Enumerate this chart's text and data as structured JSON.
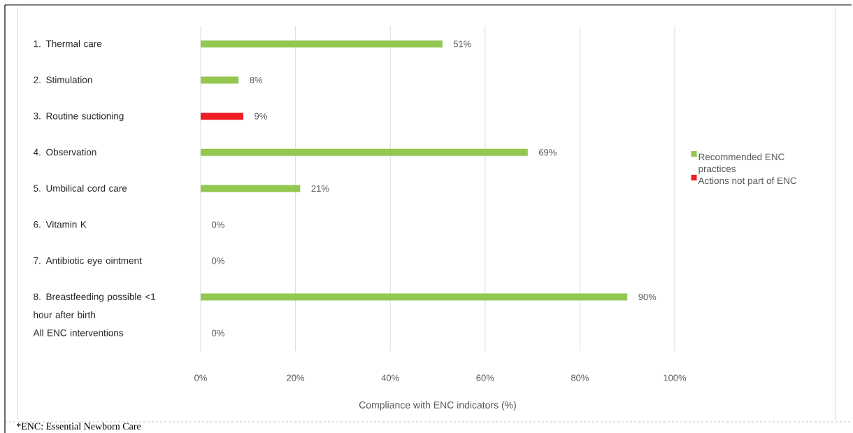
{
  "chart_data": {
    "type": "bar",
    "orientation": "horizontal",
    "categories": [
      "1. Thermal care",
      "2. Stimulation",
      "3. Routine suctioning",
      "4. Observation",
      "5. Umbilical cord care",
      "6. Vitamin K",
      "7. Antibiotic eye ointment",
      "8. Breastfeeding possible <1 hour after birth",
      "All ENC interventions"
    ],
    "series": [
      {
        "name": "Recommended ENC practices",
        "color": "#92c850",
        "values": [
          51,
          8,
          null,
          69,
          21,
          0,
          0,
          90,
          0
        ],
        "value_labels": [
          "51%",
          "8%",
          null,
          "69%",
          "21%",
          "0%",
          "0%",
          "90%",
          "0%"
        ]
      },
      {
        "name": "Actions not part of ENC",
        "color": "#ee1c25",
        "values": [
          null,
          null,
          9,
          null,
          null,
          null,
          null,
          null,
          null
        ],
        "value_labels": [
          null,
          null,
          "9%",
          null,
          null,
          null,
          null,
          null,
          null
        ]
      }
    ],
    "xlabel": "Compliance with ENC indicators (%)",
    "xlim": [
      0,
      100
    ],
    "xticks": [
      {
        "value": 0,
        "label": "0%"
      },
      {
        "value": 20,
        "label": "20%"
      },
      {
        "value": 40,
        "label": "40%"
      },
      {
        "value": 60,
        "label": "60%"
      },
      {
        "value": 80,
        "label": "80%"
      },
      {
        "value": 100,
        "label": "100%"
      }
    ],
    "grid": "x",
    "legend": "right",
    "annotations": [
      "*ENC: Essential Newborn Care"
    ]
  }
}
